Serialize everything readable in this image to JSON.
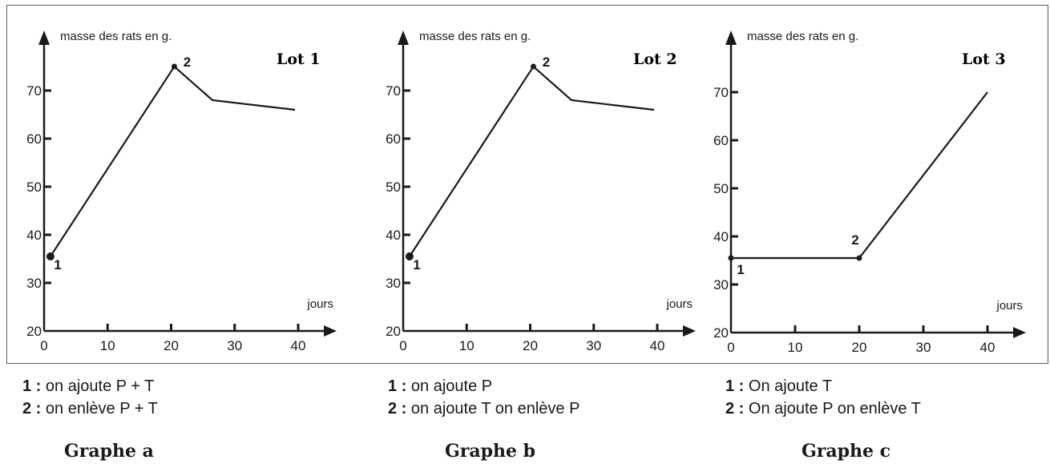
{
  "chart_data": [
    {
      "type": "line",
      "ylabel": "masse des rats en g.",
      "xlabel": "jours",
      "corner_label": "Lot 1",
      "ylim": [
        20,
        78
      ],
      "xlim": [
        0,
        45
      ],
      "x_ticks": [
        "0",
        "10",
        "20",
        "30",
        "40"
      ],
      "y_ticks": [
        "20",
        "30",
        "40",
        "50",
        "60",
        "70"
      ],
      "points": [
        [
          1,
          35.5
        ],
        [
          20.5,
          75
        ],
        [
          26.5,
          68
        ],
        [
          39.5,
          66
        ]
      ],
      "markers": [
        {
          "label": "1",
          "x": 1,
          "y": 35.5
        },
        {
          "label": "2",
          "x": 20.5,
          "y": 75
        }
      ],
      "legend": [
        {
          "num": "1 :",
          "text": " on ajoute P + T"
        },
        {
          "num": "2 :",
          "text": " on enlève P + T"
        }
      ],
      "caption": "Graphe a"
    },
    {
      "type": "line",
      "ylabel": "masse des rats en g.",
      "xlabel": "jours",
      "corner_label": "Lot 2",
      "ylim": [
        20,
        78
      ],
      "xlim": [
        0,
        45
      ],
      "x_ticks": [
        "0",
        "10",
        "20",
        "30",
        "40"
      ],
      "y_ticks": [
        "20",
        "30",
        "40",
        "50",
        "60",
        "70"
      ],
      "points": [
        [
          1,
          35.5
        ],
        [
          20.5,
          75
        ],
        [
          26.5,
          68
        ],
        [
          39.5,
          66
        ]
      ],
      "markers": [
        {
          "label": "1",
          "x": 1,
          "y": 35.5
        },
        {
          "label": "2",
          "x": 20.5,
          "y": 75
        }
      ],
      "legend": [
        {
          "num": "1 :",
          "text": " on ajoute P"
        },
        {
          "num": "2 :",
          "text": " on ajoute T on enlève P"
        }
      ],
      "caption": "Graphe b"
    },
    {
      "type": "line",
      "ylabel": "masse des rats en g.",
      "xlabel": "jours",
      "corner_label": "Lot 3",
      "ylim": [
        20,
        78
      ],
      "xlim": [
        0,
        45
      ],
      "x_ticks": [
        "0",
        "10",
        "20",
        "30",
        "40"
      ],
      "y_ticks": [
        "20",
        "30",
        "40",
        "50",
        "60",
        "70"
      ],
      "points": [
        [
          0,
          35.5
        ],
        [
          20,
          35.5
        ],
        [
          40,
          70
        ]
      ],
      "markers": [
        {
          "label": "1",
          "x": 0,
          "y": 35.5
        },
        {
          "label": "2",
          "x": 20,
          "y": 35.5
        }
      ],
      "legend": [
        {
          "num": "1 :",
          "text": " On ajoute T"
        },
        {
          "num": "2 :",
          "text": " On ajoute P on enlève T"
        }
      ],
      "caption": "Graphe c"
    }
  ]
}
